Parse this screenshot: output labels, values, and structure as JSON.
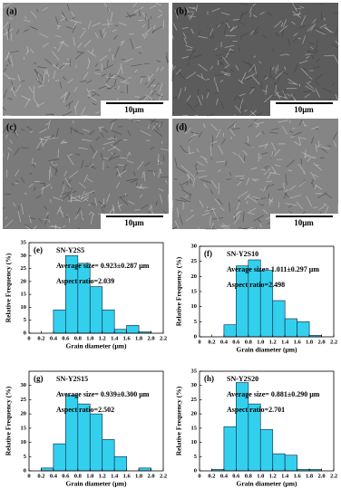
{
  "images": [
    {
      "label": "(a)",
      "scale_bar": "10μm"
    },
    {
      "label": "(b)",
      "scale_bar": "10μm"
    },
    {
      "label": "(c)",
      "scale_bar": "10μm"
    },
    {
      "label": "(d)",
      "scale_bar": "10μm"
    }
  ],
  "chart_data": [
    {
      "type": "histogram",
      "panel_label": "(e)",
      "annotations": [
        "SN-Y2S5",
        "Average size= 0.923±0.287 μm",
        "Aspect ratio=2.039"
      ],
      "xlabel": "Grain diameter (μm)",
      "ylabel": "Relative Frequency (%)",
      "color": "#33d0ee",
      "bins": [
        0.4,
        0.6,
        0.8,
        1.0,
        1.2,
        1.4,
        1.6,
        1.8,
        2.0
      ],
      "values": [
        9,
        30,
        27,
        18,
        9,
        1.5,
        3,
        0.5
      ],
      "xlim": [
        0,
        2.2
      ],
      "xticks": [
        0,
        0.2,
        0.4,
        0.6,
        0.8,
        {
          "value": 1,
          "label": "1.0"
        },
        1.2,
        1.4,
        1.6,
        1.8,
        {
          "value": 2,
          "label": "2.0"
        },
        2.2
      ],
      "ylim": [
        0,
        35
      ],
      "yticks": [
        0,
        5,
        10,
        15,
        20,
        25,
        30,
        35
      ]
    },
    {
      "type": "histogram",
      "panel_label": "(f)",
      "annotations": [
        "SN-Y2S10",
        "Average size= 1.011±0.297 μm",
        "Aspect ratio=2.498"
      ],
      "xlabel": "Grain diameter (μm)",
      "ylabel": "Relative Frequency (%)",
      "color": "#33d0ee",
      "bins": [
        0.4,
        0.6,
        0.8,
        1.0,
        1.2,
        1.4,
        1.6,
        1.8,
        2.0
      ],
      "values": [
        4,
        23.5,
        25.5,
        22,
        12,
        6,
        5,
        0.5
      ],
      "xlim": [
        0,
        2.2
      ],
      "xticks": [
        0,
        0.2,
        0.4,
        0.6,
        0.8,
        {
          "value": 1,
          "label": "1.0"
        },
        1.2,
        1.4,
        1.6,
        1.8,
        {
          "value": 2,
          "label": "2.0"
        },
        2.2
      ],
      "ylim": [
        0,
        30
      ],
      "yticks": [
        0,
        5,
        10,
        15,
        20,
        25,
        30
      ]
    },
    {
      "type": "histogram",
      "panel_label": "(g)",
      "annotations": [
        "SN-Y2S15",
        "Average size= 0.939±0.300 μm",
        "Aspect ratio=2.502"
      ],
      "xlabel": "Grain diameter (μm)",
      "ylabel": "Relative Frequency (%)",
      "color": "#33d0ee",
      "bins": [
        0.2,
        0.4,
        0.6,
        0.8,
        1.0,
        1.2,
        1.4,
        1.6,
        1.8,
        2.0
      ],
      "values": [
        1,
        9.5,
        26.5,
        23.5,
        20,
        11,
        5,
        0,
        1
      ],
      "xlim": [
        0,
        2.2
      ],
      "xticks": [
        0,
        0.2,
        0.4,
        0.6,
        0.8,
        {
          "value": 1,
          "label": "1.0"
        },
        1.2,
        1.4,
        1.6,
        1.8,
        {
          "value": 2,
          "label": "2.0"
        },
        2.2
      ],
      "ylim": [
        0,
        35
      ],
      "yticks": [
        0,
        5,
        10,
        15,
        20,
        25,
        30
      ]
    },
    {
      "type": "histogram",
      "panel_label": "(h)",
      "annotations": [
        "SN-Y2S20",
        "Average size= 0.881±0.290 μm",
        "Aspect ratio=2.701"
      ],
      "xlabel": "Grain diameter (μm)",
      "ylabel": "Relative Frequency (%)",
      "color": "#33d0ee",
      "bins": [
        0.2,
        0.4,
        0.6,
        0.8,
        1.0,
        1.2,
        1.4,
        1.6,
        1.8,
        2.0
      ],
      "values": [
        0.5,
        15.5,
        31,
        23.5,
        14.5,
        6,
        5.5,
        0.5,
        0.5
      ],
      "xlim": [
        0,
        2.2
      ],
      "xticks": [
        0,
        0.2,
        0.4,
        0.6,
        0.8,
        {
          "value": 1,
          "label": "1.0"
        },
        1.2,
        1.4,
        1.6,
        1.8,
        {
          "value": 2,
          "label": "2.0"
        },
        2.2
      ],
      "ylim": [
        0,
        35
      ],
      "yticks": [
        0,
        5,
        10,
        15,
        20,
        25,
        30,
        35
      ]
    }
  ]
}
